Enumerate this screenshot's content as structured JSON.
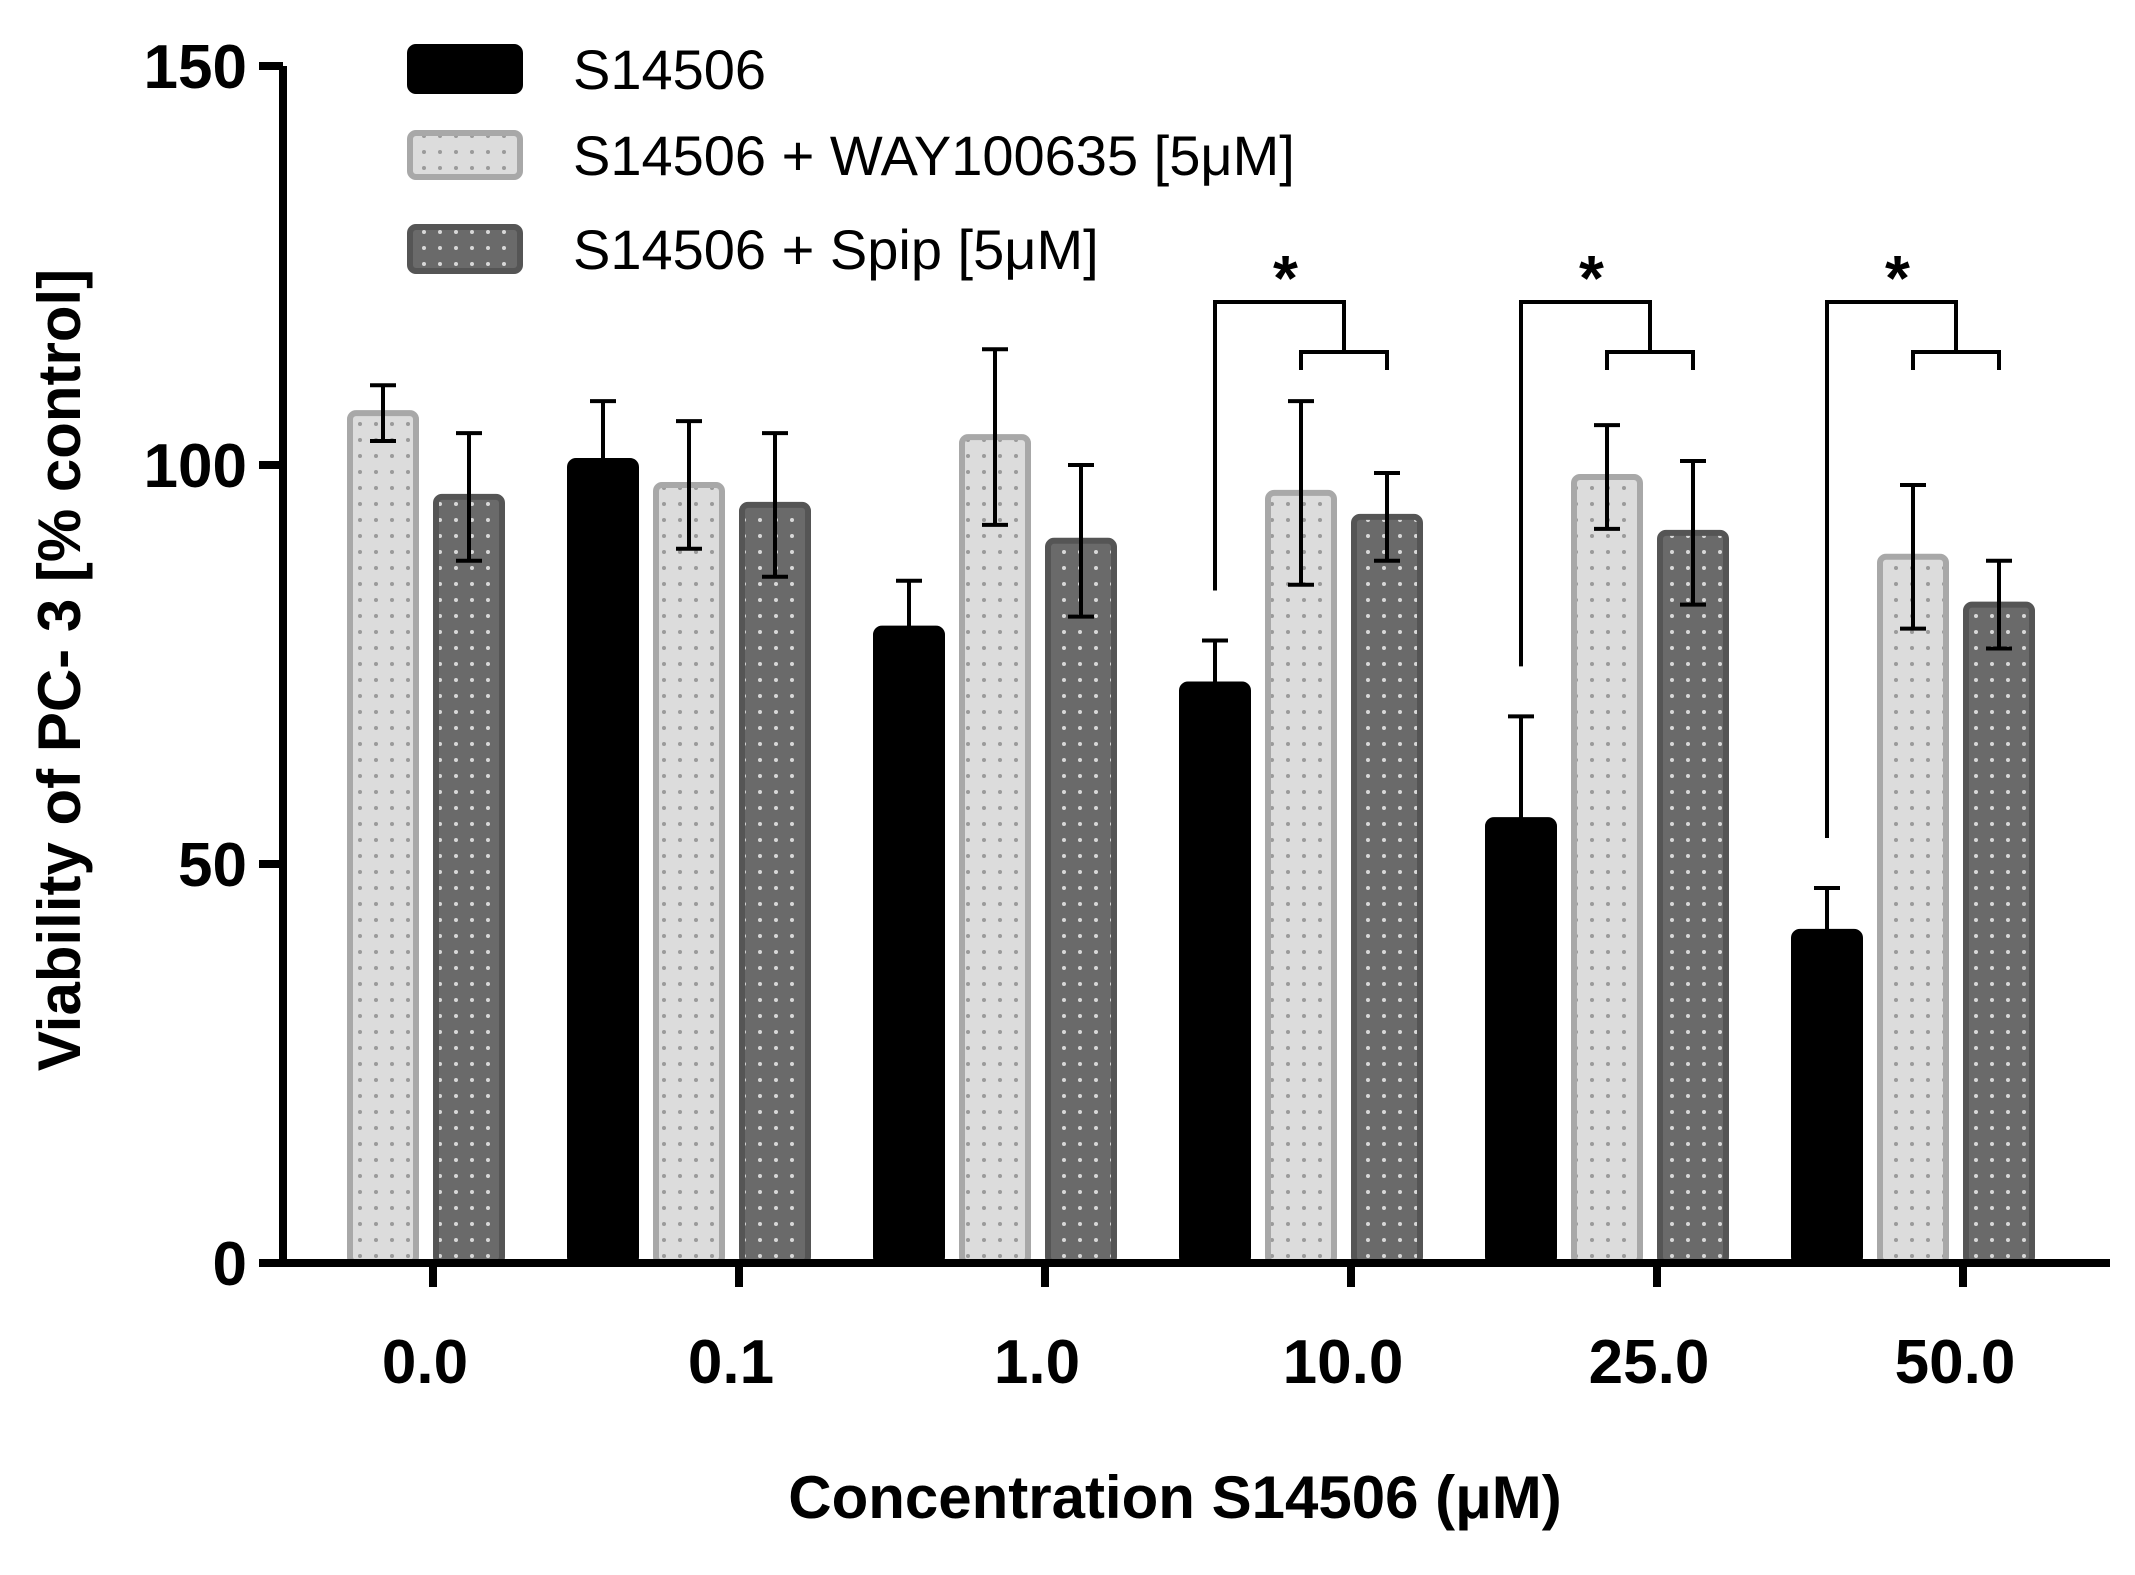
{
  "chart_data": {
    "type": "bar",
    "title": "",
    "xlabel": "Concentration S14506 (μM)",
    "ylabel": "Viability of PC- 3 [% control]",
    "ylim": [
      0,
      150
    ],
    "yticks": [
      0,
      50,
      100,
      150
    ],
    "ytick_labels": [
      "0",
      "50",
      "100",
      "150"
    ],
    "categories": [
      "0.0",
      "0.1",
      "1.0",
      "10.0",
      "25.0",
      "50.0"
    ],
    "series": [
      {
        "name": "S14506",
        "color": "#000000",
        "fill": "solid",
        "values": [
          null,
          100.5,
          79.5,
          72.5,
          55.5,
          41.5
        ],
        "errors": [
          null,
          7.5,
          6.0,
          5.5,
          13.0,
          5.5
        ]
      },
      {
        "name": "S14506 + WAY100635 [5μM]",
        "color": "#dcdcdc",
        "border": "#a8a8a8",
        "fill": "dotted",
        "values": [
          106.5,
          97.5,
          103.5,
          96.5,
          98.5,
          88.5
        ],
        "errors": [
          3.5,
          8.0,
          11.0,
          11.5,
          6.5,
          9.0
        ]
      },
      {
        "name": "S14506 + Spip [5μM]",
        "color": "#6a6a6a",
        "border": "#555555",
        "fill": "dotted",
        "values": [
          96.0,
          95.0,
          90.5,
          93.5,
          91.5,
          82.5
        ],
        "errors": [
          8.0,
          9.0,
          9.5,
          5.5,
          9.0,
          5.5
        ]
      }
    ],
    "significance": [
      {
        "category": "10.0",
        "label": "*"
      },
      {
        "category": "25.0",
        "label": "*"
      },
      {
        "category": "50.0",
        "label": "*"
      }
    ],
    "legend_position": "top-left"
  }
}
